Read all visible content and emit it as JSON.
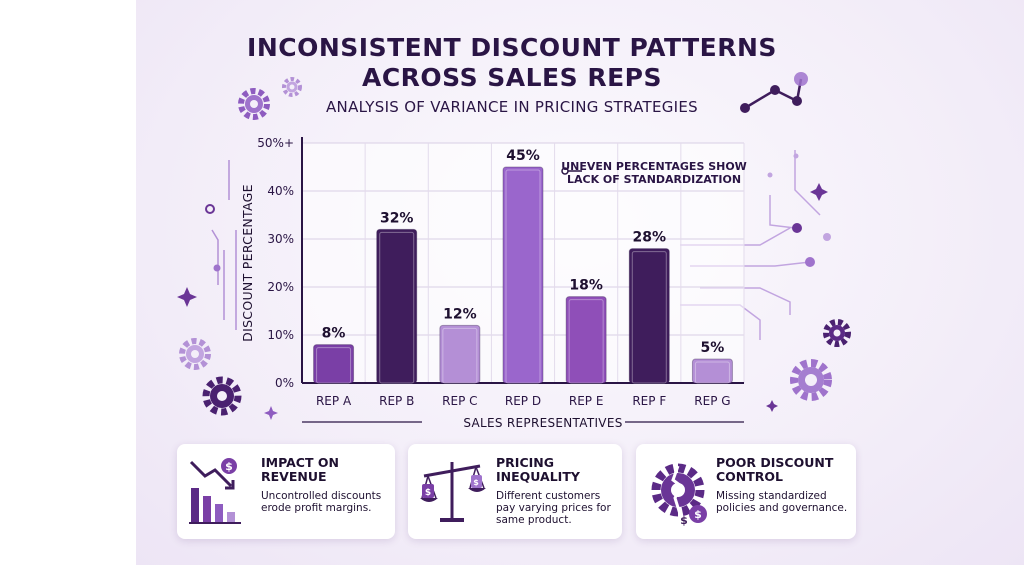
{
  "header": {
    "title_line1": "INCONSISTENT DISCOUNT PATTERNS",
    "title_line2": "ACROSS SALES REPS",
    "subtitle": "ANALYSIS OF VARIANCE IN PRICING STRATEGIES"
  },
  "annotation": {
    "line1": "UNEVEN PERCENTAGES SHOW",
    "line2": "LACK OF STANDARDIZATION"
  },
  "chart_data": {
    "type": "bar",
    "categories": [
      "REP A",
      "REP B",
      "REP C",
      "REP D",
      "REP E",
      "REP F",
      "REP G"
    ],
    "values": [
      8,
      32,
      12,
      45,
      18,
      28,
      5
    ],
    "data_labels": [
      "8%",
      "32%",
      "12%",
      "45%",
      "18%",
      "28%",
      "5%"
    ],
    "xlabel": "SALES REPRESENTATIVES",
    "ylabel": "DISCOUNT PERCENTAGE",
    "ylim": [
      0,
      50
    ],
    "y_ticks": [
      0,
      10,
      20,
      30,
      40,
      50
    ],
    "y_tick_labels": [
      "0%",
      "10%",
      "20%",
      "30%",
      "40%",
      "50%+"
    ],
    "bar_colors": [
      "#7a3fa6",
      "#3f1d5c",
      "#b48fd6",
      "#9a66cc",
      "#8f4fb8",
      "#3f1d5c",
      "#b48fd6"
    ],
    "grid": true
  },
  "cards": [
    {
      "title_line1": "IMPACT ON",
      "title_line2": "REVENUE",
      "text_line1": "Uncontrolled discounts",
      "text_line2": "erode profit margins.",
      "text_line3": "",
      "icon": "declining-revenue-chart-icon"
    },
    {
      "title_line1": "PRICING",
      "title_line2": "INEQUALITY",
      "text_line1": "Different customers",
      "text_line2": "pay varying prices for",
      "text_line3": "same product.",
      "icon": "unbalanced-scale-icon"
    },
    {
      "title_line1": "POOR DISCOUNT",
      "title_line2": "CONTROL",
      "text_line1": "Missing standardized",
      "text_line2": "policies and governance.",
      "text_line3": "",
      "icon": "broken-gear-icon"
    }
  ],
  "colors": {
    "dark": "#2a1545",
    "accent": "#7a3fa6",
    "light": "#b48fd6"
  }
}
